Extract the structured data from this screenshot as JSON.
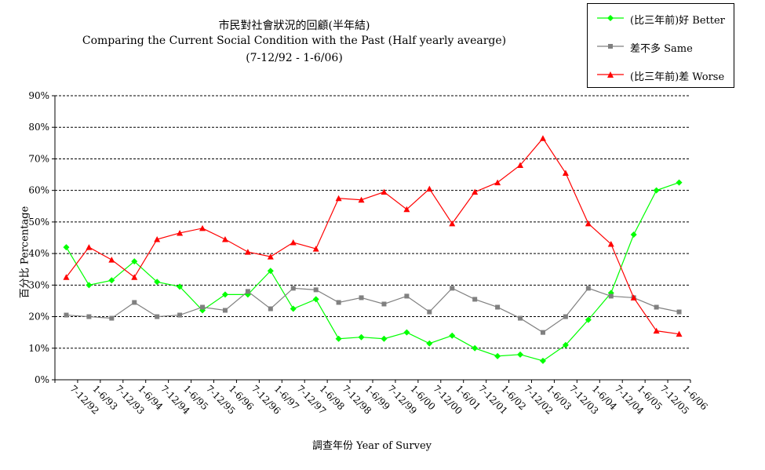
{
  "chart_data": {
    "type": "line",
    "title": "市民對社會狀況的回顧(半年結)",
    "subtitle": "Comparing the Current Social Condition with the Past (Half yearly avearge)",
    "period": "(7-12/92 - 1-6/06)",
    "xlabel": "調查年份 Year of Survey",
    "ylabel": "百分比 Percentage",
    "ylim": [
      0,
      90
    ],
    "yticks": [
      "0%",
      "10%",
      "20%",
      "30%",
      "40%",
      "50%",
      "60%",
      "70%",
      "80%",
      "90%"
    ],
    "grid": true,
    "legend_position": "top-right",
    "categories": [
      "7-12/92",
      "1-6/93",
      "7-12/93",
      "1-6/94",
      "7-12/94",
      "1-6/95",
      "7-12/95",
      "1-6/96",
      "7-12/96",
      "1-6/97",
      "7-12/97",
      "1-6/98",
      "7-12/98",
      "1-6/99",
      "7-12/99",
      "1-6/00",
      "7-12/00",
      "1-6/01",
      "7-12/01",
      "1-6/02",
      "7-12/02",
      "1-6/03",
      "7-12/03",
      "1-6/04",
      "7-12/04",
      "1-6/05",
      "7-12/05",
      "1-6/06"
    ],
    "series": [
      {
        "name": "(比三年前)好 Better",
        "color": "#00ff00",
        "marker": "diamond",
        "values": [
          42,
          30,
          31.5,
          37.5,
          31,
          29.5,
          22,
          27,
          27,
          34.5,
          22.5,
          25.5,
          13,
          13.5,
          13,
          15,
          11.5,
          14,
          10,
          7.5,
          8,
          6,
          11,
          19,
          27.5,
          46,
          60,
          62.5
        ]
      },
      {
        "name": "差不多 Same",
        "color": "#808080",
        "marker": "square",
        "values": [
          20.5,
          20,
          19.5,
          24.5,
          20,
          20.5,
          23,
          22,
          28,
          22.5,
          29,
          28.5,
          24.5,
          26,
          24,
          26.5,
          21.5,
          29,
          25.5,
          23,
          19.5,
          15,
          20,
          29,
          26.5,
          26,
          23,
          21.5
        ]
      },
      {
        "name": "(比三年前)差 Worse",
        "color": "#ff0000",
        "marker": "triangle",
        "values": [
          32.5,
          42,
          38,
          32.5,
          44.5,
          46.5,
          48,
          44.5,
          40.5,
          39,
          43.5,
          41.5,
          57.5,
          57,
          59.5,
          54,
          60.5,
          49.5,
          59.5,
          62.5,
          68,
          76.5,
          65.5,
          49.5,
          43,
          26,
          15.5,
          14.5
        ]
      }
    ]
  }
}
